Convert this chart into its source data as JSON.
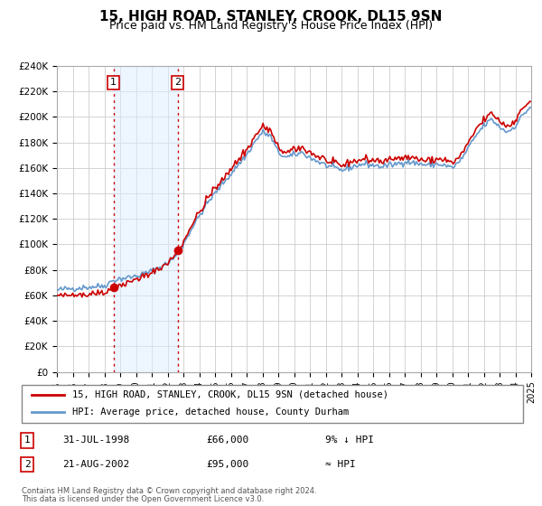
{
  "title": "15, HIGH ROAD, STANLEY, CROOK, DL15 9SN",
  "subtitle": "Price paid vs. HM Land Registry's House Price Index (HPI)",
  "title_fontsize": 11,
  "subtitle_fontsize": 9,
  "bg_color": "#ffffff",
  "plot_bg_color": "#ffffff",
  "grid_color": "#cccccc",
  "ylim": [
    0,
    240000
  ],
  "yticks": [
    0,
    20000,
    40000,
    60000,
    80000,
    100000,
    120000,
    140000,
    160000,
    180000,
    200000,
    220000,
    240000
  ],
  "ytick_labels": [
    "£0",
    "£20K",
    "£40K",
    "£60K",
    "£80K",
    "£100K",
    "£120K",
    "£140K",
    "£160K",
    "£180K",
    "£200K",
    "£220K",
    "£240K"
  ],
  "hpi_color": "#6699cc",
  "house_color": "#cc0000",
  "point1_x": 1998.58,
  "point1_y": 66000,
  "point2_x": 2002.64,
  "point2_y": 95000,
  "shade_color": "#ddeeff",
  "shade_alpha": 0.5,
  "legend_house": "15, HIGH ROAD, STANLEY, CROOK, DL15 9SN (detached house)",
  "legend_hpi": "HPI: Average price, detached house, County Durham",
  "row1_label": "1",
  "row1_date": "31-JUL-1998",
  "row1_price": "£66,000",
  "row1_hpi": "9% ↓ HPI",
  "row2_label": "2",
  "row2_date": "21-AUG-2002",
  "row2_price": "£95,000",
  "row2_hpi": "≈ HPI",
  "footer": "Contains HM Land Registry data © Crown copyright and database right 2024.\nThis data is licensed under the Open Government Licence v3.0.",
  "xmin": 1995,
  "xmax": 2025
}
